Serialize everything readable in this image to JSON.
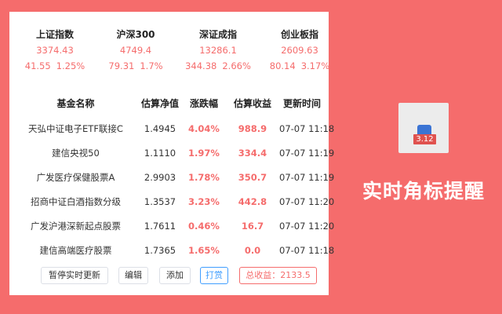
{
  "indices": [
    {
      "name": "上证指数",
      "price": "3374.43",
      "change": "41.55",
      "percent": "1.25%"
    },
    {
      "name": "沪深300",
      "price": "4749.4",
      "change": "79.31",
      "percent": "1.7%"
    },
    {
      "name": "深证成指",
      "price": "13286.1",
      "change": "344.38",
      "percent": "2.66%"
    },
    {
      "name": "创业板指",
      "price": "2609.63",
      "change": "80.14",
      "percent": "3.17%"
    }
  ],
  "table": {
    "headers": [
      "基金名称",
      "估算净值",
      "涨跌幅",
      "估算收益",
      "更新时间"
    ],
    "rows": [
      {
        "name": "天弘中证电子ETF联接C",
        "nav": "1.4945",
        "pct": "4.04%",
        "gain": "988.9",
        "time": "07-07 11:18"
      },
      {
        "name": "建信央视50",
        "nav": "1.1110",
        "pct": "1.97%",
        "gain": "334.4",
        "time": "07-07 11:19"
      },
      {
        "name": "广发医疗保健股票A",
        "nav": "2.9903",
        "pct": "1.78%",
        "gain": "350.7",
        "time": "07-07 11:19"
      },
      {
        "name": "招商中证白酒指数分级",
        "nav": "1.3537",
        "pct": "3.23%",
        "gain": "442.8",
        "time": "07-07 11:20"
      },
      {
        "name": "广发沪港深新起点股票",
        "nav": "1.7611",
        "pct": "0.46%",
        "gain": "16.7",
        "time": "07-07 11:20"
      },
      {
        "name": "建信高端医疗股票",
        "nav": "1.7365",
        "pct": "1.65%",
        "gain": "0.0",
        "time": "07-07 11:18"
      }
    ]
  },
  "buttons": {
    "pause": "暂停实时更新",
    "edit": "编辑",
    "add": "添加",
    "tip": "打赏",
    "total": "总收益：2133.5"
  },
  "promo": {
    "badge": "3.12",
    "slogan": "实时角标提醒"
  },
  "colors": {
    "accent": "#f56c6c",
    "blue": "#409eff",
    "badge": "#e0524f"
  }
}
